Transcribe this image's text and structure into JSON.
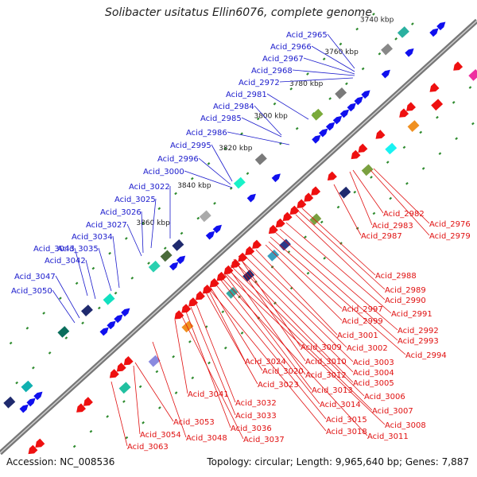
{
  "title": "Solibacter usitatus Ellin6076, complete genome",
  "footer": {
    "accession": "Accession: NC_008536",
    "summary": "Topology: circular; Length: 9,965,640 bp; Genes: 7,887"
  },
  "colors": {
    "forward_label": "#1a1acc",
    "reverse_label": "#e01010",
    "backbone": "#8c8c8c",
    "tick": "#2e8b2e"
  },
  "scale_labels": [
    "3740 kbp",
    "3760 kbp",
    "3780 kbp",
    "3800 kbp",
    "3820 kbp",
    "3840 kbp",
    "3860 kbp"
  ],
  "forward_genes": [
    "Acid_2965",
    "Acid_2966",
    "Acid_2967",
    "Acid_2968",
    "Acid_2972",
    "Acid_2981",
    "Acid_2984",
    "Acid_2985",
    "Acid_2986",
    "Acid_2995",
    "Acid_2996",
    "Acid_3000",
    "Acid_3022",
    "Acid_3025",
    "Acid_3026",
    "Acid_3027",
    "Acid_3034",
    "Acid_3035",
    "Acid_3042",
    "Acid_3043",
    "Acid_3047",
    "Acid_3050"
  ],
  "reverse_genes": [
    "Acid_2976",
    "Acid_2979",
    "Acid_2982",
    "Acid_2983",
    "Acid_2987",
    "Acid_2988",
    "Acid_2989",
    "Acid_2990",
    "Acid_2991",
    "Acid_2992",
    "Acid_2993",
    "Acid_2994",
    "Acid_2997",
    "Acid_2999",
    "Acid_3001",
    "Acid_3002",
    "Acid_3003",
    "Acid_3004",
    "Acid_3005",
    "Acid_3006",
    "Acid_3007",
    "Acid_3008",
    "Acid_3009",
    "Acid_3010",
    "Acid_3011",
    "Acid_3012",
    "Acid_3013",
    "Acid_3014",
    "Acid_3015",
    "Acid_3018",
    "Acid_3020",
    "Acid_3023",
    "Acid_3024",
    "Acid_3032",
    "Acid_3033",
    "Acid_3036",
    "Acid_3037",
    "Acid_3041",
    "Acid_3048",
    "Acid_3053",
    "Acid_3054",
    "Acid_3063"
  ]
}
